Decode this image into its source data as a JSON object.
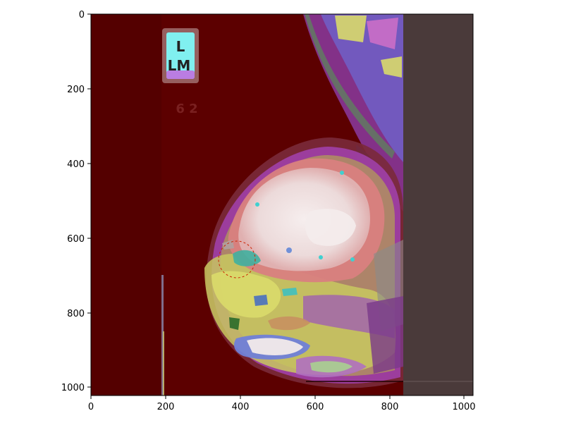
{
  "figure": {
    "axes": {
      "x_ticks": [
        "0",
        "200",
        "400",
        "600",
        "800",
        "1000"
      ],
      "y_ticks": [
        "0",
        "200",
        "400",
        "600",
        "800",
        "1000"
      ],
      "x_range": [
        0,
        1024
      ],
      "y_range": [
        1024,
        0
      ]
    },
    "image": {
      "description_tags": [
        "mammogram",
        "segmentation-overlay"
      ],
      "marker_text_top": "L",
      "marker_text_bottom": "LM",
      "faint_text": "6   2",
      "roi_circle": {
        "cx": 390,
        "cy": 655,
        "r": 48,
        "style": "dashed",
        "color": "#cc2200"
      }
    },
    "colors": {
      "background_tissue": "#5a0000",
      "dense_core": "#f0e6e6",
      "pink_region": "#d98080",
      "magenta_region": "#b04db0",
      "purple_region": "#7a5ac8",
      "yellow_region": "#d9d96a",
      "cyan_region": "#66e0e0",
      "gray_panel": "#4a3a3a"
    }
  }
}
